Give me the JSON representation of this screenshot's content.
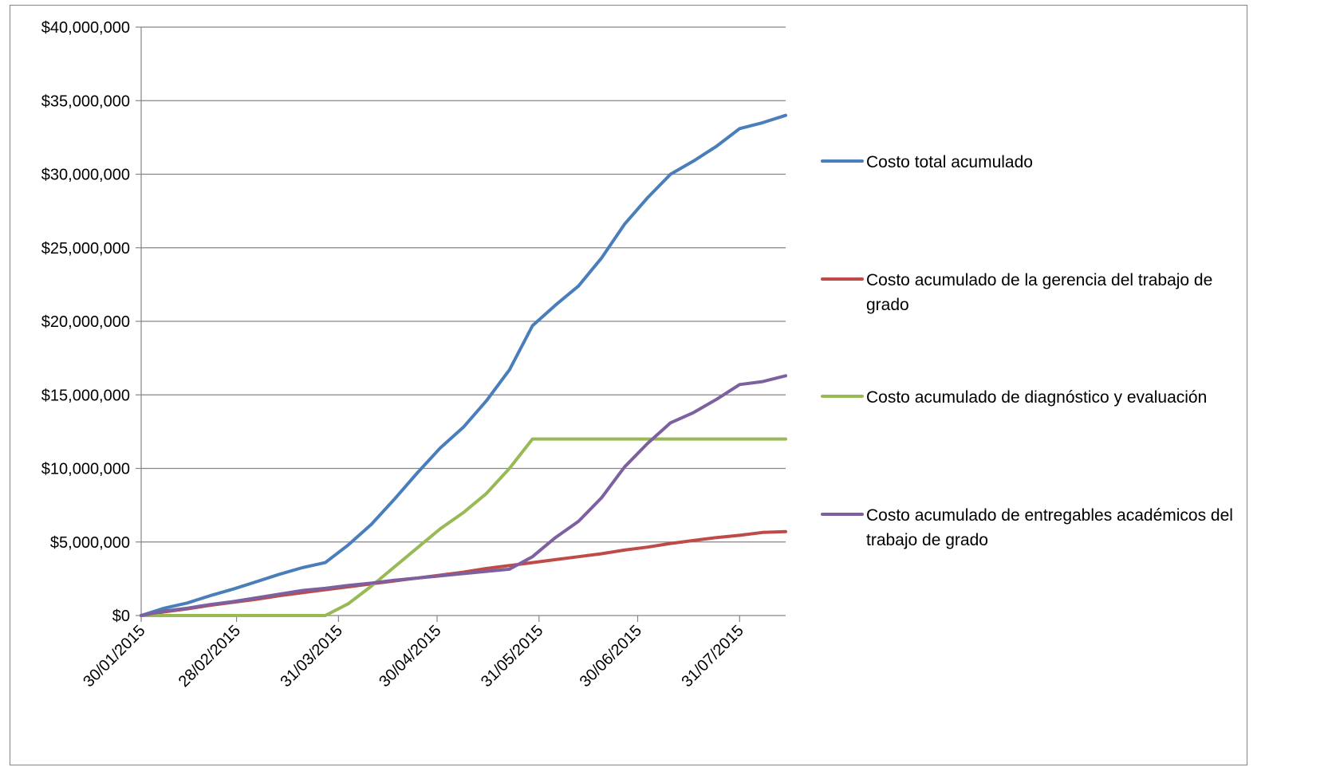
{
  "chart_data": {
    "type": "line",
    "title": "",
    "xlabel": "",
    "ylabel": "",
    "ylim": [
      0,
      40000000
    ],
    "y_ticks": [
      0,
      5000000,
      10000000,
      15000000,
      20000000,
      25000000,
      30000000,
      35000000,
      40000000
    ],
    "y_tick_labels": [
      "$0",
      "$5,000,000",
      "$10,000,000",
      "$15,000,000",
      "$20,000,000",
      "$25,000,000",
      "$30,000,000",
      "$35,000,000",
      "$40,000,000"
    ],
    "x_ticks": [
      "2015-01-30",
      "2015-02-28",
      "2015-03-31",
      "2015-04-30",
      "2015-05-31",
      "2015-06-30",
      "2015-07-31"
    ],
    "x_tick_labels": [
      "30/01/2015",
      "28/02/2015",
      "31/03/2015",
      "30/04/2015",
      "31/05/2015",
      "30/06/2015",
      "31/07/2015"
    ],
    "xlim": [
      "2015-01-30",
      "2015-08-14"
    ],
    "grid": true,
    "legend_position": "right",
    "x": [
      "2015-01-30",
      "2015-02-06",
      "2015-02-13",
      "2015-02-20",
      "2015-02-27",
      "2015-03-06",
      "2015-03-13",
      "2015-03-20",
      "2015-03-27",
      "2015-04-03",
      "2015-04-10",
      "2015-04-17",
      "2015-04-24",
      "2015-05-01",
      "2015-05-08",
      "2015-05-15",
      "2015-05-22",
      "2015-05-29",
      "2015-06-05",
      "2015-06-12",
      "2015-06-19",
      "2015-06-26",
      "2015-07-03",
      "2015-07-10",
      "2015-07-17",
      "2015-07-24",
      "2015-07-31",
      "2015-08-07",
      "2015-08-14"
    ],
    "series": [
      {
        "name": "Costo total acumulado",
        "color": "#4a7ebb",
        "values": [
          0,
          500000,
          850000,
          1350000,
          1800000,
          2300000,
          2800000,
          3250000,
          3600000,
          4800000,
          6200000,
          7900000,
          9700000,
          11400000,
          12800000,
          14600000,
          16700000,
          19700000,
          21100000,
          22400000,
          24300000,
          26600000,
          28400000,
          30000000,
          30900000,
          31900000,
          33100000,
          33500000,
          34000000
        ]
      },
      {
        "name": "Costo acumulado de la gerencia del trabajo de grado",
        "color": "#be4b48",
        "values": [
          0,
          250000,
          450000,
          700000,
          900000,
          1100000,
          1350000,
          1550000,
          1750000,
          1950000,
          2150000,
          2350000,
          2550000,
          2750000,
          2950000,
          3200000,
          3400000,
          3600000,
          3800000,
          4000000,
          4200000,
          4450000,
          4650000,
          4900000,
          5100000,
          5300000,
          5450000,
          5650000,
          5700000
        ]
      },
      {
        "name": "Costo acumulado de diagnóstico y evaluación",
        "color": "#98b954",
        "values": [
          0,
          0,
          0,
          0,
          0,
          0,
          0,
          0,
          0,
          800000,
          2000000,
          3300000,
          4600000,
          5900000,
          7000000,
          8300000,
          10000000,
          12000000,
          12000000,
          12000000,
          12000000,
          12000000,
          12000000,
          12000000,
          12000000,
          12000000,
          12000000,
          12000000,
          12000000
        ]
      },
      {
        "name": "Costo acumulado de entregables académicos del trabajo de grado",
        "color": "#7d60a0",
        "values": [
          0,
          300000,
          500000,
          750000,
          950000,
          1200000,
          1450000,
          1700000,
          1850000,
          2050000,
          2200000,
          2400000,
          2550000,
          2700000,
          2850000,
          3000000,
          3150000,
          4000000,
          5300000,
          6400000,
          8000000,
          10100000,
          11700000,
          13100000,
          13800000,
          14700000,
          15700000,
          15900000,
          16300000
        ]
      }
    ]
  }
}
